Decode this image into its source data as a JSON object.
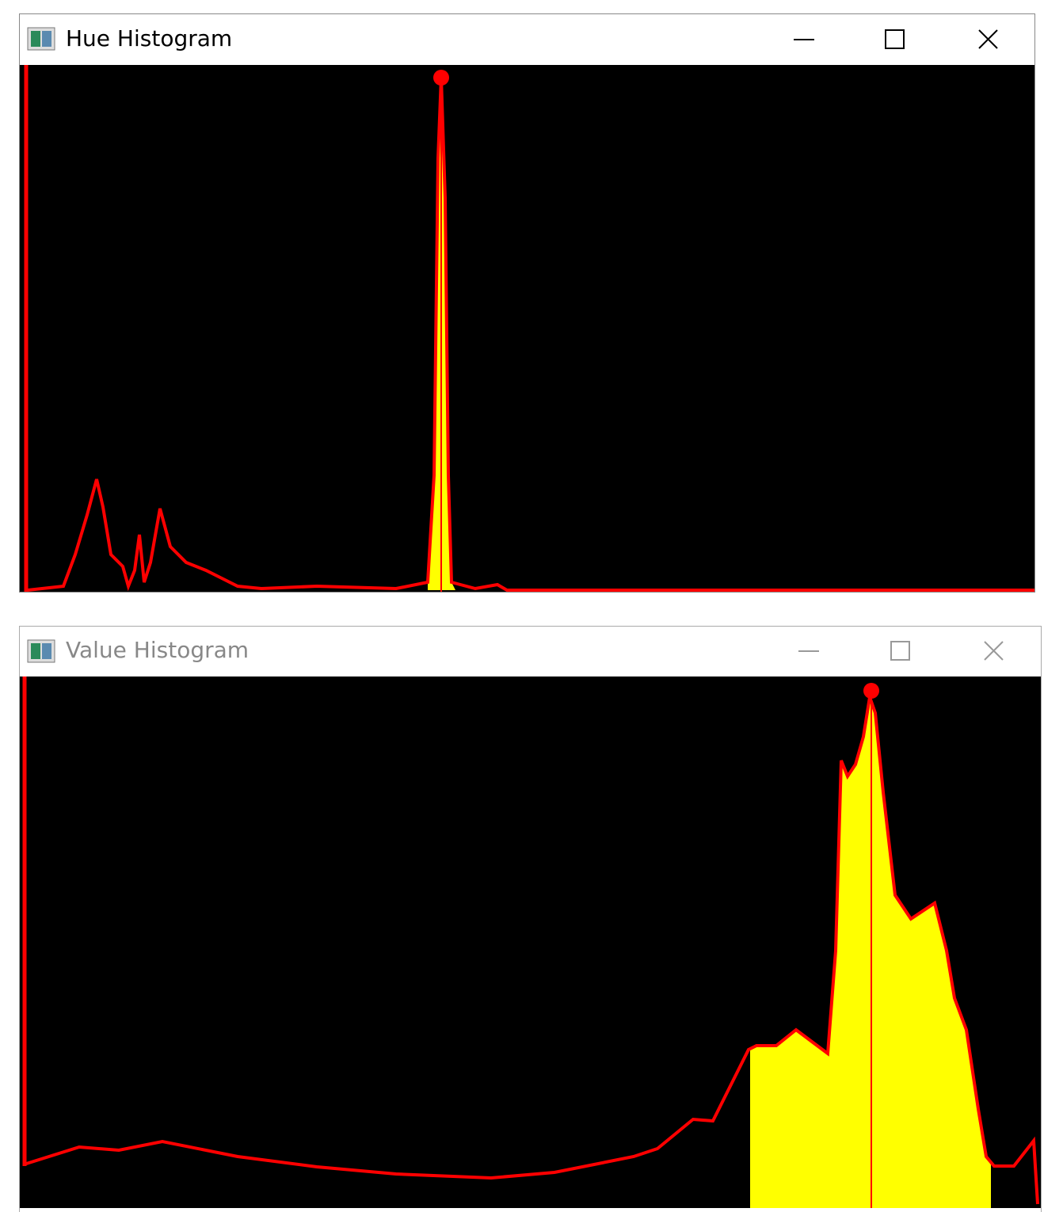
{
  "windows": [
    {
      "title": "Hue Histogram"
    },
    {
      "title": "Value Histogram"
    }
  ]
}
